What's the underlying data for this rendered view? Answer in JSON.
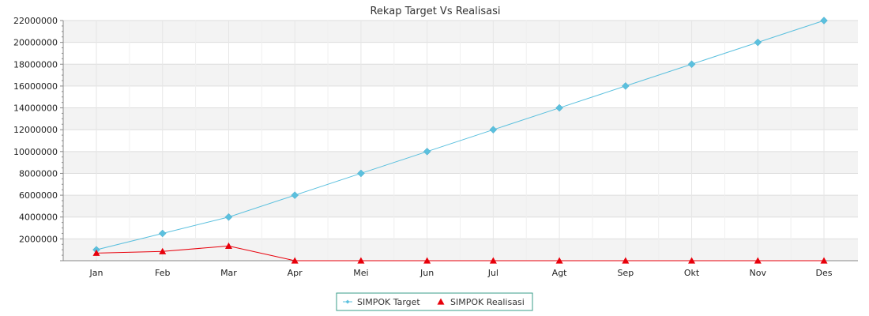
{
  "chart_data": {
    "type": "line",
    "title": "Rekap Target Vs Realisasi",
    "xlabel": "",
    "ylabel": "",
    "categories": [
      "Jan",
      "Feb",
      "Mar",
      "Apr",
      "Mei",
      "Jun",
      "Jul",
      "Agt",
      "Sep",
      "Okt",
      "Nov",
      "Des"
    ],
    "ylim": [
      0,
      22000000
    ],
    "yticks": [
      2000000,
      4000000,
      6000000,
      8000000,
      10000000,
      12000000,
      14000000,
      16000000,
      18000000,
      20000000,
      22000000
    ],
    "grid": true,
    "legend_position": "bottom-center",
    "series": [
      {
        "name": "SIMPOK Target",
        "color": "#5bc0de",
        "marker": "diamond",
        "values": [
          1000000,
          2500000,
          4000000,
          6000000,
          8000000,
          10000000,
          12000000,
          14000000,
          16000000,
          18000000,
          20000000,
          22000000
        ]
      },
      {
        "name": "SIMPOK Realisasi",
        "color": "#e8000b",
        "marker": "triangle",
        "values": [
          700000,
          850000,
          1350000,
          0,
          0,
          0,
          0,
          0,
          0,
          0,
          0,
          0
        ]
      }
    ]
  }
}
